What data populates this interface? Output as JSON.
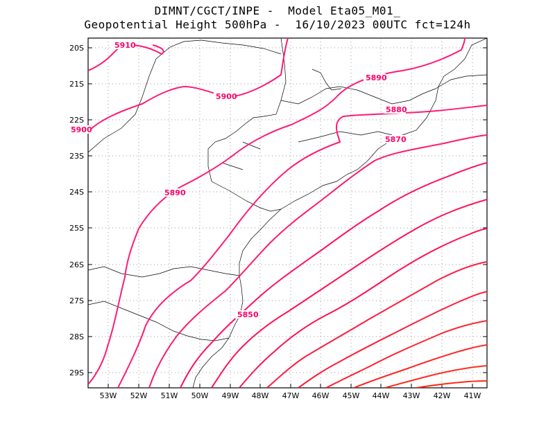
{
  "title": {
    "line1": "DIMNT/CGCT/INPE -  Model Eta05_M01_",
    "line2": "Geopotential Height 500hPa -  16/10/2023 00UTC fct=124h"
  },
  "axes": {
    "lat_labels": [
      "20S",
      "21S",
      "22S",
      "23S",
      "24S",
      "25S",
      "26S",
      "27S",
      "28S",
      "29S"
    ],
    "lon_labels": [
      "53W",
      "52W",
      "51W",
      "50W",
      "49W",
      "48W",
      "47W",
      "46W",
      "45W",
      "44W",
      "43W",
      "42W",
      "41W"
    ]
  },
  "contour_labels": [
    {
      "text": "5910"
    },
    {
      "text": "5900"
    },
    {
      "text": "5900"
    },
    {
      "text": "5890"
    },
    {
      "text": "5890"
    },
    {
      "text": "5880"
    },
    {
      "text": "5870"
    },
    {
      "text": "5850"
    }
  ],
  "colors": {
    "contour_high": "#ff1a75",
    "contour_mid": "#ff1040",
    "contour_low": "#ff2200",
    "coast": "#000000",
    "grid": "#999999"
  }
}
